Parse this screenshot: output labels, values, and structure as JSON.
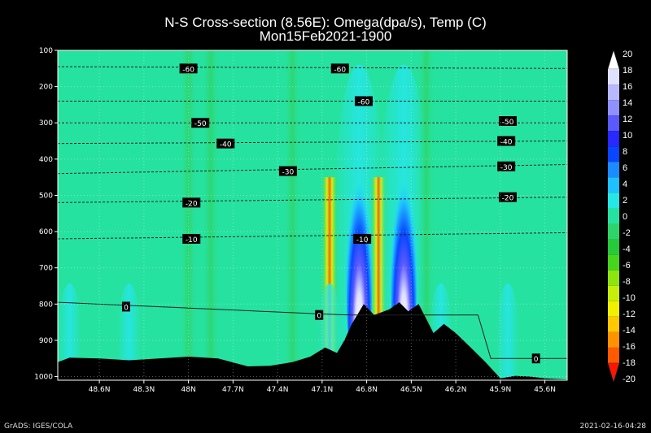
{
  "title": "N-S Cross-section (8.56E): Omega(dpa/s), Temp (C)",
  "subtitle": "Mon15Feb2021-1900",
  "footer_left": "GrADS: IGES/COLA",
  "footer_right": "2021-02-16-04:28",
  "chart_data": {
    "type": "heatmap",
    "y_axis": {
      "label": "",
      "ticks": [
        100,
        200,
        300,
        400,
        500,
        600,
        700,
        800,
        900,
        1000
      ],
      "ylim": [
        100,
        1010
      ],
      "inverted": true
    },
    "x_axis": {
      "label": "",
      "ticks": [
        "48.6N",
        "48.3N",
        "48N",
        "47.7N",
        "47.4N",
        "47.1N",
        "46.8N",
        "46.5N",
        "46.2N",
        "45.9N",
        "45.6N"
      ],
      "xlim": [
        48.88,
        45.45
      ]
    },
    "colorbar": {
      "labels": [
        "20",
        "18",
        "16",
        "14",
        "12",
        "10",
        "8",
        "6",
        "4",
        "2",
        "0",
        "-2",
        "-4",
        "-6",
        "-8",
        "-10",
        "-12",
        "-14",
        "-16",
        "-18",
        "-20"
      ],
      "colors": [
        "#ffffff",
        "#e0e0ff",
        "#b8b8ff",
        "#9090ff",
        "#5a5aff",
        "#2828ff",
        "#0a46ff",
        "#1b8cff",
        "#1ec0ff",
        "#26e6e6",
        "#26e2a0",
        "#2ed46a",
        "#27c83a",
        "#46d41c",
        "#8ee40f",
        "#c6ee0a",
        "#f0f000",
        "#ffc800",
        "#ff9200",
        "#ff5a00",
        "#ff1400"
      ]
    },
    "omega_features": [
      {
        "lat": 48.0,
        "kind": "green-column"
      },
      {
        "lat": 47.85,
        "kind": "green-column"
      },
      {
        "lat": 47.3,
        "kind": "green-column"
      },
      {
        "lat": 47.05,
        "kind": "ascent",
        "peak": -12
      },
      {
        "lat": 46.85,
        "kind": "descent",
        "peak": 20
      },
      {
        "lat": 46.72,
        "kind": "ascent",
        "peak": -20
      },
      {
        "lat": 46.55,
        "kind": "descent",
        "peak": 20
      },
      {
        "lat": 46.4,
        "kind": "green-column"
      }
    ],
    "temperature_contours": [
      {
        "label": "-60",
        "p_left": 145,
        "p_right": 150
      },
      {
        "label": "-60",
        "p_left": 240,
        "p_right": 240
      },
      {
        "label": "-50",
        "p_left": 300,
        "p_right": 300
      },
      {
        "label": "-40",
        "p_left": 357,
        "p_right": 350
      },
      {
        "label": "-30",
        "p_left": 440,
        "p_right": 415
      },
      {
        "label": "-20",
        "p_left": 520,
        "p_right": 505
      },
      {
        "label": "-10",
        "p_left": 620,
        "p_right": 603
      },
      {
        "label": "0",
        "p_left": 795,
        "p_right": 950
      }
    ],
    "contour_labels": [
      {
        "text": "-60",
        "lat": 48.0,
        "p": 150
      },
      {
        "text": "-60",
        "lat": 46.98,
        "p": 150
      },
      {
        "text": "-60",
        "lat": 46.82,
        "p": 240
      },
      {
        "text": "-50",
        "lat": 47.92,
        "p": 300
      },
      {
        "text": "-50",
        "lat": 45.85,
        "p": 295
      },
      {
        "text": "-40",
        "lat": 47.75,
        "p": 357
      },
      {
        "text": "-40",
        "lat": 45.86,
        "p": 350
      },
      {
        "text": "-30",
        "lat": 47.33,
        "p": 433
      },
      {
        "text": "-30",
        "lat": 45.86,
        "p": 420
      },
      {
        "text": "-20",
        "lat": 47.98,
        "p": 520
      },
      {
        "text": "-20",
        "lat": 45.85,
        "p": 505
      },
      {
        "text": "-10",
        "lat": 47.98,
        "p": 620
      },
      {
        "text": "-10",
        "lat": 46.83,
        "p": 620
      },
      {
        "text": "0",
        "lat": 48.42,
        "p": 807
      },
      {
        "text": "0",
        "lat": 47.12,
        "p": 830
      },
      {
        "text": "0",
        "lat": 45.66,
        "p": 950
      }
    ],
    "terrain_pressure": [
      [
        48.88,
        960
      ],
      [
        48.8,
        948
      ],
      [
        48.6,
        950
      ],
      [
        48.4,
        955
      ],
      [
        48.2,
        950
      ],
      [
        48.0,
        945
      ],
      [
        47.8,
        950
      ],
      [
        47.6,
        972
      ],
      [
        47.45,
        970
      ],
      [
        47.3,
        960
      ],
      [
        47.18,
        945
      ],
      [
        47.08,
        920
      ],
      [
        47.0,
        935
      ],
      [
        46.95,
        900
      ],
      [
        46.9,
        855
      ],
      [
        46.82,
        800
      ],
      [
        46.75,
        830
      ],
      [
        46.65,
        815
      ],
      [
        46.58,
        795
      ],
      [
        46.52,
        820
      ],
      [
        46.45,
        800
      ],
      [
        46.35,
        880
      ],
      [
        46.28,
        855
      ],
      [
        46.2,
        880
      ],
      [
        46.1,
        920
      ],
      [
        46.0,
        960
      ],
      [
        45.9,
        1005
      ],
      [
        45.8,
        998
      ],
      [
        45.7,
        1000
      ],
      [
        45.6,
        1005
      ],
      [
        45.45,
        1008
      ]
    ]
  }
}
